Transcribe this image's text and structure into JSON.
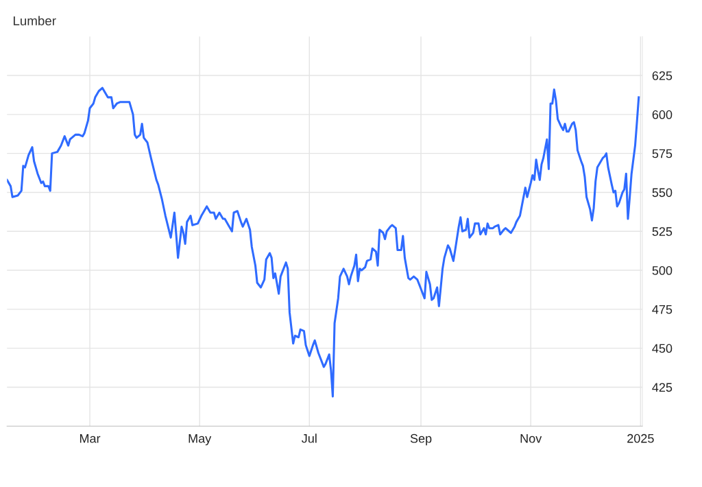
{
  "chart_data": {
    "type": "line",
    "title": "Lumber",
    "color": "#2f6bff",
    "x": [
      "2024-01-15",
      "2024-01-17",
      "2024-01-18",
      "2024-01-21",
      "2024-01-23",
      "2024-01-24",
      "2024-01-25",
      "2024-01-27",
      "2024-01-29",
      "2024-01-30",
      "2024-02-01",
      "2024-02-03",
      "2024-02-04",
      "2024-02-05",
      "2024-02-07",
      "2024-02-08",
      "2024-02-09",
      "2024-02-12",
      "2024-02-14",
      "2024-02-16",
      "2024-02-18",
      "2024-02-19",
      "2024-02-22",
      "2024-02-24",
      "2024-02-26",
      "2024-02-27",
      "2024-02-29",
      "2024-03-01",
      "2024-03-03",
      "2024-03-04",
      "2024-03-06",
      "2024-03-08",
      "2024-03-10",
      "2024-03-11",
      "2024-03-13",
      "2024-03-14",
      "2024-03-16",
      "2024-03-18",
      "2024-03-20",
      "2024-03-23",
      "2024-03-25",
      "2024-03-26",
      "2024-03-27",
      "2024-03-29",
      "2024-03-30",
      "2024-03-31",
      "2024-04-02",
      "2024-04-04",
      "2024-04-07",
      "2024-04-08",
      "2024-04-10",
      "2024-04-12",
      "2024-04-15",
      "2024-04-17",
      "2024-04-18",
      "2024-04-19",
      "2024-04-21",
      "2024-04-22",
      "2024-04-23",
      "2024-04-24",
      "2024-04-26",
      "2024-04-27",
      "2024-04-30",
      "2024-05-02",
      "2024-05-04",
      "2024-05-05",
      "2024-05-07",
      "2024-05-09",
      "2024-05-10",
      "2024-05-12",
      "2024-05-14",
      "2024-05-15",
      "2024-05-17",
      "2024-05-19",
      "2024-05-20",
      "2024-05-22",
      "2024-05-24",
      "2024-05-25",
      "2024-05-27",
      "2024-05-29",
      "2024-05-30",
      "2024-06-01",
      "2024-06-02",
      "2024-06-04",
      "2024-06-06",
      "2024-06-07",
      "2024-06-09",
      "2024-06-10",
      "2024-06-11",
      "2024-06-12",
      "2024-06-14",
      "2024-06-15",
      "2024-06-18",
      "2024-06-19",
      "2024-06-20",
      "2024-06-22",
      "2024-06-23",
      "2024-06-25",
      "2024-06-26",
      "2024-06-28",
      "2024-06-29",
      "2024-07-01",
      "2024-07-03",
      "2024-07-04",
      "2024-07-06",
      "2024-07-07",
      "2024-07-09",
      "2024-07-10",
      "2024-07-12",
      "2024-07-13",
      "2024-07-14",
      "2024-07-15",
      "2024-07-17",
      "2024-07-18",
      "2024-07-20",
      "2024-07-22",
      "2024-07-23",
      "2024-07-24",
      "2024-07-26",
      "2024-07-27",
      "2024-07-28",
      "2024-07-29",
      "2024-07-30",
      "2024-08-01",
      "2024-08-02",
      "2024-08-04",
      "2024-08-05",
      "2024-08-07",
      "2024-08-08",
      "2024-08-09",
      "2024-08-11",
      "2024-08-12",
      "2024-08-13",
      "2024-08-15",
      "2024-08-16",
      "2024-08-18",
      "2024-08-19",
      "2024-08-21",
      "2024-08-22",
      "2024-08-23",
      "2024-08-25",
      "2024-08-26",
      "2024-08-28",
      "2024-08-30",
      "2024-09-01",
      "2024-09-03",
      "2024-09-04",
      "2024-09-06",
      "2024-09-07",
      "2024-09-08",
      "2024-09-10",
      "2024-09-11",
      "2024-09-13",
      "2024-09-14",
      "2024-09-16",
      "2024-09-17",
      "2024-09-19",
      "2024-09-20",
      "2024-09-22",
      "2024-09-23",
      "2024-09-24",
      "2024-09-26",
      "2024-09-27",
      "2024-09-28",
      "2024-09-30",
      "2024-10-01",
      "2024-10-03",
      "2024-10-04",
      "2024-10-06",
      "2024-10-07",
      "2024-10-08",
      "2024-10-09",
      "2024-10-11",
      "2024-10-12",
      "2024-10-14",
      "2024-10-15",
      "2024-10-17",
      "2024-10-18",
      "2024-10-20",
      "2024-10-21",
      "2024-10-23",
      "2024-10-24",
      "2024-10-26",
      "2024-10-27",
      "2024-10-29",
      "2024-10-30",
      "2024-11-01",
      "2024-11-02",
      "2024-11-03",
      "2024-11-04",
      "2024-11-05",
      "2024-11-06",
      "2024-11-07",
      "2024-11-08",
      "2024-11-10",
      "2024-11-11",
      "2024-11-12",
      "2024-11-13",
      "2024-11-14",
      "2024-11-15",
      "2024-11-16",
      "2024-11-18",
      "2024-11-19",
      "2024-11-20",
      "2024-11-21",
      "2024-11-22",
      "2024-11-24",
      "2024-11-25",
      "2024-11-26",
      "2024-11-27",
      "2024-11-29",
      "2024-11-30",
      "2024-12-01",
      "2024-12-02",
      "2024-12-04",
      "2024-12-05",
      "2024-12-06",
      "2024-12-07",
      "2024-12-08",
      "2024-12-10",
      "2024-12-11",
      "2024-12-12",
      "2024-12-13",
      "2024-12-14",
      "2024-12-16",
      "2024-12-17",
      "2024-12-18",
      "2024-12-19",
      "2024-12-20",
      "2024-12-22",
      "2024-12-23",
      "2024-12-24",
      "2024-12-25",
      "2024-12-26",
      "2024-12-27",
      "2024-12-29",
      "2024-12-30",
      "2024-12-31"
    ],
    "values": [
      558,
      554,
      547,
      548,
      551,
      567,
      566,
      574,
      579,
      570,
      562,
      556,
      557,
      554,
      554,
      551,
      575,
      576,
      580,
      586,
      580,
      584,
      587,
      587,
      586,
      588,
      596,
      604,
      607,
      611,
      615,
      617,
      613,
      611,
      611,
      604,
      607,
      608,
      608,
      608,
      600,
      587,
      585,
      587,
      594,
      585,
      582,
      572,
      558,
      555,
      546,
      535,
      521,
      537,
      523,
      508,
      528,
      524,
      517,
      531,
      535,
      529,
      530,
      535,
      539,
      541,
      537,
      537,
      533,
      537,
      533,
      533,
      529,
      525,
      537,
      538,
      531,
      528,
      533,
      526,
      515,
      503,
      492,
      489,
      494,
      507,
      511,
      508,
      495,
      498,
      485,
      496,
      505,
      501,
      473,
      453,
      458,
      457,
      462,
      461,
      452,
      445,
      452,
      455,
      447,
      444,
      438,
      440,
      446,
      436,
      419,
      466,
      482,
      496,
      501,
      496,
      491,
      496,
      503,
      510,
      493,
      501,
      500,
      502,
      506,
      507,
      514,
      512,
      503,
      526,
      524,
      520,
      525,
      528,
      529,
      527,
      513,
      513,
      522,
      508,
      495,
      494,
      496,
      494,
      488,
      482,
      499,
      491,
      481,
      482,
      489,
      477,
      501,
      508,
      516,
      514,
      506,
      513,
      528,
      534,
      525,
      526,
      533,
      521,
      524,
      530,
      530,
      523,
      527,
      523,
      530,
      527,
      527,
      528,
      529,
      523,
      526,
      527,
      525,
      524,
      528,
      531,
      535,
      541,
      553,
      547,
      556,
      561,
      558,
      571,
      564,
      558,
      568,
      572,
      584,
      565,
      607,
      607,
      616,
      609,
      597,
      592,
      590,
      594,
      589,
      589,
      594,
      595,
      590,
      577,
      570,
      567,
      560,
      547,
      539,
      532,
      540,
      557,
      566,
      570,
      572,
      573,
      575,
      566,
      555,
      550,
      551,
      541,
      543,
      550,
      552,
      562,
      533,
      547,
      562,
      580,
      595,
      611
    ],
    "xlim": [
      "2024-01-15",
      "2025-01-02"
    ],
    "xticks": [
      {
        "value": "2024-03-01",
        "label": "Mar"
      },
      {
        "value": "2024-05-01",
        "label": "May"
      },
      {
        "value": "2024-07-01",
        "label": "Jul"
      },
      {
        "value": "2024-09-01",
        "label": "Sep"
      },
      {
        "value": "2024-11-01",
        "label": "Nov"
      },
      {
        "value": "2025-01-01",
        "label": "2025"
      }
    ],
    "ylim": [
      400,
      650
    ],
    "yticks": [
      425,
      450,
      475,
      500,
      525,
      550,
      575,
      600,
      625
    ],
    "grid": true,
    "marker": "none",
    "line_style": "solid"
  }
}
